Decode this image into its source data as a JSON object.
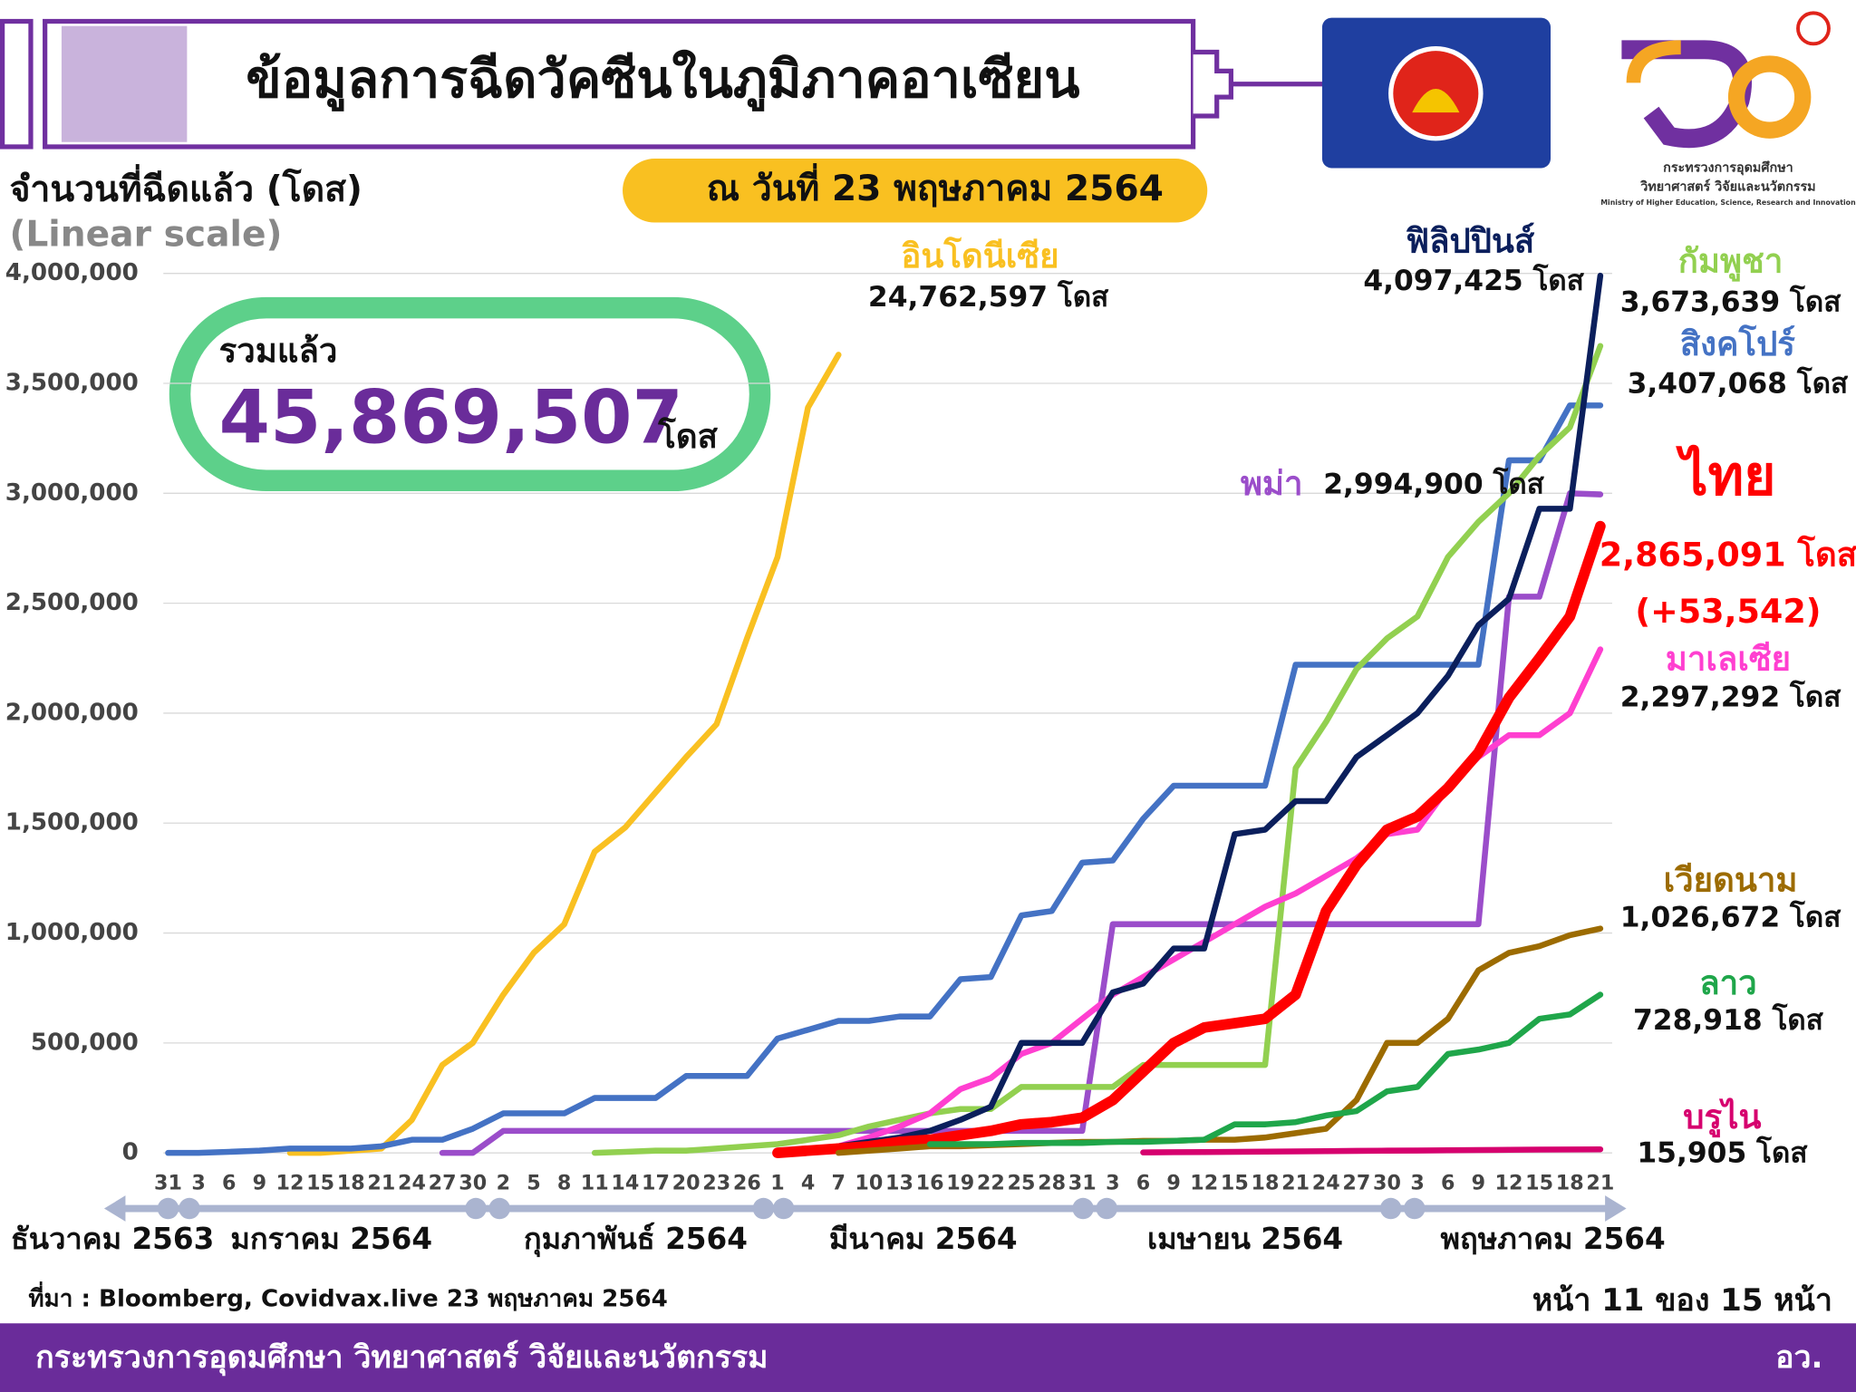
{
  "chart_data": {
    "type": "line",
    "title": "ข้อมูลการฉีดวัคซีนในภูมิภาคอาเซียน",
    "y_label": "จำนวนที่ฉีดแล้ว (โดส)",
    "scale_note": "(Linear scale)",
    "date": "ณ วันที่ 23 พฤษภาคม 2564",
    "total_title": "รวมแล้ว",
    "total": {
      "value": 45869507,
      "label": "45,869,507"
    },
    "total_unit": "โดส",
    "categories": [
      "31",
      "3",
      "6",
      "9",
      "12",
      "15",
      "18",
      "21",
      "24",
      "27",
      "30",
      "2",
      "5",
      "8",
      "11",
      "14",
      "17",
      "20",
      "23",
      "26",
      "1",
      "4",
      "7",
      "10",
      "13",
      "16",
      "19",
      "22",
      "25",
      "28",
      "31",
      "3",
      "6",
      "9",
      "12",
      "15",
      "18",
      "21",
      "24",
      "27",
      "30",
      "3",
      "6",
      "9",
      "12",
      "15",
      "18",
      "21"
    ],
    "months": [
      "ธันวาคม 2563",
      "มกราคม 2564",
      "กุมภาพันธ์ 2564",
      "มีนาคม 2564",
      "เมษายน 2564",
      "พฤษภาคม 2564"
    ],
    "ylim": [
      0,
      4000000
    ],
    "yticks": [
      0,
      {
        "value": 500000,
        "label": "500,000"
      },
      {
        "value": 1000000,
        "label": "1,000,000"
      },
      {
        "value": 1500000,
        "label": "1,500,000"
      },
      {
        "value": 2000000,
        "label": "2,000,000"
      },
      {
        "value": 2500000,
        "label": "2,500,000"
      },
      {
        "value": 3000000,
        "label": "3,000,000"
      },
      {
        "value": 3500000,
        "label": "3,500,000"
      },
      {
        "value": 4000000,
        "label": "4,000,000"
      }
    ],
    "grid": true,
    "series": [
      {
        "name": "อินโดนีเซีย",
        "color": "#f9c021",
        "end_label": {
          "value": 24762597,
          "label": "24,762,597 โดส"
        },
        "values": [
          null,
          null,
          null,
          null,
          0,
          0,
          10000,
          20000,
          150000,
          400000,
          500000,
          720000,
          910000,
          1040000,
          1370000,
          1480000,
          1640000,
          1800000,
          1950000,
          2340000,
          2710000,
          3390000,
          3630000,
          null,
          null,
          null,
          null,
          null,
          null,
          null,
          null,
          null,
          null,
          null,
          null,
          null,
          null,
          null,
          null,
          null,
          null,
          null,
          null,
          null,
          null,
          null,
          null,
          null
        ]
      },
      {
        "name": "สิงคโปร์",
        "color": "#4472c4",
        "end_label": {
          "value": 3407068,
          "label": "3,407,068 โดส"
        },
        "values": [
          0,
          0,
          5000,
          10000,
          20000,
          20000,
          20000,
          30000,
          60000,
          60000,
          110000,
          180000,
          180000,
          180000,
          250000,
          250000,
          250000,
          350000,
          350000,
          350000,
          520000,
          560000,
          600000,
          600000,
          620000,
          620000,
          790000,
          800000,
          1080000,
          1100000,
          1320000,
          1330000,
          1520000,
          1670000,
          1670000,
          1670000,
          1670000,
          2220000,
          2220000,
          2220000,
          2220000,
          2220000,
          2220000,
          2220000,
          3150000,
          3150000,
          3400000,
          3400000
        ]
      },
      {
        "name": "พม่า",
        "color": "#9b4dca",
        "end_label": {
          "value": 2994900,
          "label": "2,994,900 โดส"
        },
        "values": [
          null,
          null,
          null,
          null,
          null,
          null,
          null,
          null,
          null,
          0,
          0,
          100000,
          100000,
          100000,
          100000,
          100000,
          100000,
          100000,
          100000,
          100000,
          100000,
          100000,
          100000,
          100000,
          100000,
          100000,
          100000,
          100000,
          100000,
          100000,
          100000,
          1040000,
          1040000,
          1040000,
          1040000,
          1040000,
          1040000,
          1040000,
          1040000,
          1040000,
          1040000,
          1040000,
          1040000,
          1040000,
          2530000,
          2530000,
          3000000,
          2994900
        ]
      },
      {
        "name": "กัมพูชา",
        "color": "#92d050",
        "end_label": {
          "value": 3673639,
          "label": "3,673,639 โดส"
        },
        "values": [
          null,
          null,
          null,
          null,
          null,
          null,
          null,
          null,
          null,
          null,
          null,
          null,
          null,
          null,
          0,
          5000,
          10000,
          10000,
          20000,
          30000,
          40000,
          60000,
          80000,
          120000,
          150000,
          180000,
          200000,
          200000,
          300000,
          300000,
          300000,
          300000,
          400000,
          400000,
          400000,
          400000,
          400000,
          1750000,
          1960000,
          2200000,
          2340000,
          2440000,
          2710000,
          2870000,
          3000000,
          3170000,
          3300000,
          3670000
        ]
      },
      {
        "name": "มาเลเซีย",
        "color": "#ff3fd0",
        "end_label": {
          "value": 2297292,
          "label": "2,297,292 โดส"
        },
        "values": [
          null,
          null,
          null,
          null,
          null,
          null,
          null,
          null,
          null,
          null,
          null,
          null,
          null,
          null,
          null,
          null,
          null,
          null,
          null,
          null,
          0,
          10000,
          30000,
          70000,
          120000,
          180000,
          290000,
          340000,
          450000,
          500000,
          610000,
          720000,
          800000,
          880000,
          960000,
          1040000,
          1120000,
          1180000,
          1260000,
          1340000,
          1450000,
          1470000,
          1660000,
          1800000,
          1900000,
          1900000,
          2000000,
          2290000
        ]
      },
      {
        "name": "ฟิลิปปินส์",
        "color": "#0b1f5c",
        "end_label": {
          "value": 4097425,
          "label": "4,097,425 โดส"
        },
        "values": [
          null,
          null,
          null,
          null,
          null,
          null,
          null,
          null,
          null,
          null,
          null,
          null,
          null,
          null,
          null,
          null,
          null,
          null,
          null,
          null,
          0,
          10000,
          30000,
          50000,
          70000,
          100000,
          150000,
          210000,
          500000,
          500000,
          500000,
          730000,
          770000,
          930000,
          930000,
          1450000,
          1470000,
          1600000,
          1600000,
          1800000,
          1900000,
          2000000,
          2170000,
          2400000,
          2520000,
          2930000,
          2930000,
          3990000
        ]
      },
      {
        "name": "ไทย",
        "color": "#ff0000",
        "highlight": true,
        "end_label": {
          "value": 2865091,
          "label": "2,865,091 โดส"
        },
        "daily_change": {
          "value": 53542,
          "label": "(+53,542)"
        },
        "values": [
          null,
          null,
          null,
          null,
          null,
          null,
          null,
          null,
          null,
          null,
          null,
          null,
          null,
          null,
          null,
          null,
          null,
          null,
          null,
          null,
          0,
          10000,
          20000,
          30000,
          50000,
          60000,
          80000,
          100000,
          130000,
          140000,
          160000,
          240000,
          370000,
          500000,
          570000,
          590000,
          610000,
          720000,
          1100000,
          1310000,
          1470000,
          1530000,
          1660000,
          1820000,
          2070000,
          2250000,
          2440000,
          2850000
        ]
      },
      {
        "name": "เวียดนาม",
        "color": "#9c6b00",
        "end_label": {
          "value": 1026672,
          "label": "1,026,672 โดส"
        },
        "values": [
          null,
          null,
          null,
          null,
          null,
          null,
          null,
          null,
          null,
          null,
          null,
          null,
          null,
          null,
          null,
          null,
          null,
          null,
          null,
          null,
          null,
          null,
          0,
          10000,
          20000,
          30000,
          30000,
          35000,
          40000,
          45000,
          50000,
          50000,
          55000,
          55000,
          60000,
          60000,
          70000,
          90000,
          110000,
          240000,
          500000,
          500000,
          610000,
          830000,
          910000,
          940000,
          990000,
          1020000
        ]
      },
      {
        "name": "ลาว",
        "color": "#1fa64a",
        "end_label": {
          "value": 728918,
          "label": "728,918 โดส"
        },
        "values": [
          null,
          null,
          null,
          null,
          null,
          null,
          null,
          null,
          null,
          null,
          null,
          null,
          null,
          null,
          null,
          null,
          null,
          null,
          null,
          null,
          null,
          null,
          null,
          null,
          null,
          40000,
          40000,
          40000,
          45000,
          45000,
          45000,
          50000,
          50000,
          55000,
          60000,
          130000,
          130000,
          140000,
          170000,
          190000,
          280000,
          300000,
          450000,
          470000,
          500000,
          610000,
          630000,
          720000
        ]
      },
      {
        "name": "บรูไน",
        "color": "#d6006e",
        "end_label": {
          "value": 15905,
          "label": "15,905 โดส"
        },
        "values": [
          null,
          null,
          null,
          null,
          null,
          null,
          null,
          null,
          null,
          null,
          null,
          null,
          null,
          null,
          null,
          null,
          null,
          null,
          null,
          null,
          null,
          null,
          null,
          null,
          null,
          null,
          null,
          null,
          null,
          null,
          null,
          null,
          2000,
          3000,
          4000,
          5000,
          6000,
          7000,
          8000,
          9000,
          10000,
          11000,
          12000,
          13000,
          14000,
          15000,
          15500,
          15900
        ]
      }
    ],
    "source": "ที่มา : Bloomberg, Covidvax.live 23 พฤษภาคม 2564",
    "page": "หน้า 11 ของ 15 หน้า"
  },
  "logo": {
    "line1": "กระทรวงการอุดมศึกษา",
    "line2": "วิทยาศาสตร์ วิจัยและนวัตกรรม",
    "line3": "Ministry of Higher Education, Science, Research and Innovation"
  },
  "footer": {
    "ministry": "กระทรวงการอุดมศึกษา วิทยาศาสตร์ วิจัยและนวัตกรรม",
    "short": "อว."
  }
}
